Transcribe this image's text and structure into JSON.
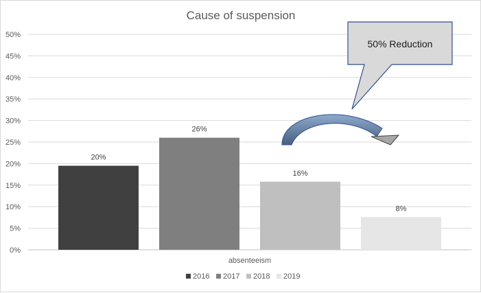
{
  "chart_data": {
    "type": "bar",
    "title": "Cause of suspension",
    "categories": [
      "absenteeism"
    ],
    "series": [
      {
        "name": "2016",
        "values": [
          0.195
        ],
        "label": "20%",
        "color": "#404040"
      },
      {
        "name": "2017",
        "values": [
          0.26
        ],
        "label": "26%",
        "color": "#7f7f7f"
      },
      {
        "name": "2018",
        "values": [
          0.158
        ],
        "label": "16%",
        "color": "#bfbfbf"
      },
      {
        "name": "2019",
        "values": [
          0.076
        ],
        "label": "8%",
        "color": "#e6e6e6"
      }
    ],
    "ylim": [
      0,
      0.5
    ],
    "yticks": [
      "0%",
      "5%",
      "10%",
      "15%",
      "20%",
      "25%",
      "30%",
      "35%",
      "40%",
      "45%",
      "50%"
    ],
    "grid": true,
    "legend": "bottom",
    "annotation": "50%  Reduction"
  }
}
